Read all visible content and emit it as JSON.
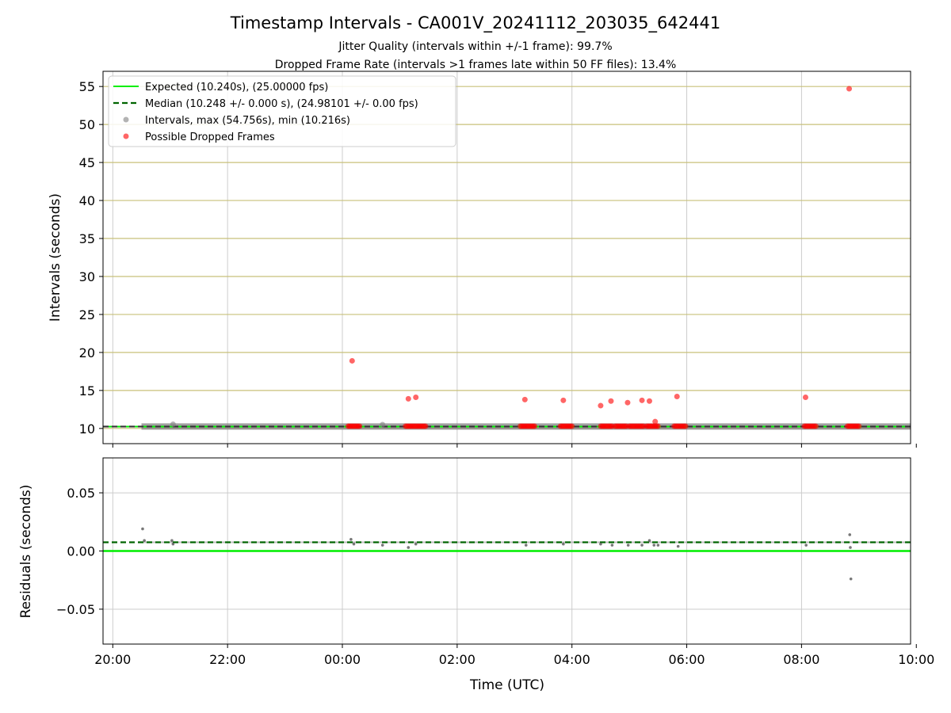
{
  "chart_data": {
    "type": "scatter",
    "title": "Timestamp Intervals - CA001V_20241112_203035_642441",
    "subtitle_lines": [
      "Jitter Quality (intervals within +/-1 frame): 99.7%",
      "Dropped Frame Rate (intervals >1 frames late within 50 FF files): 13.4%"
    ],
    "colors": {
      "expected": "#00ee00",
      "median": "#006400",
      "intervals": "#808080",
      "dropped": "#ff0000",
      "top_grid": "#c8c07a",
      "grid": "#cccccc"
    },
    "x_axis": {
      "label": "Time (UTC)",
      "range_hours": [
        19.83,
        33.9
      ],
      "ticks": [
        {
          "hour": 20,
          "label": "20:00"
        },
        {
          "hour": 22,
          "label": "22:00"
        },
        {
          "hour": 24,
          "label": "00:00"
        },
        {
          "hour": 26,
          "label": "02:00"
        },
        {
          "hour": 28,
          "label": "04:00"
        },
        {
          "hour": 30,
          "label": "06:00"
        },
        {
          "hour": 32,
          "label": "08:00"
        },
        {
          "hour": 34,
          "label": "10:00"
        }
      ]
    },
    "top_plot": {
      "ylabel": "Intervals (seconds)",
      "ylim": [
        8.0,
        57.0
      ],
      "yticks": [
        10,
        15,
        20,
        25,
        30,
        35,
        40,
        45,
        50,
        55
      ],
      "legend": {
        "placement": "top-left",
        "entries": [
          "Expected (10.240s), (25.00000 fps)",
          "Median (10.248 +/- 0.000 s), (24.98101 +/- 0.00 fps)",
          "Intervals, max (54.756s), min (10.216s)",
          "Possible Dropped Frames"
        ]
      },
      "expected_value": 10.24,
      "median_value": 10.248,
      "interval_band": {
        "start": 20.5,
        "end": 33.9,
        "value": 10.25
      },
      "interval_points": [
        [
          21.05,
          10.55
        ],
        [
          24.7,
          10.5
        ]
      ],
      "dropped_points": [
        [
          24.17,
          18.9
        ],
        [
          25.15,
          13.9
        ],
        [
          25.28,
          14.1
        ],
        [
          27.18,
          13.8
        ],
        [
          27.85,
          13.7
        ],
        [
          28.5,
          13.0
        ],
        [
          28.68,
          13.6
        ],
        [
          28.97,
          13.4
        ],
        [
          29.22,
          13.7
        ],
        [
          29.35,
          13.6
        ],
        [
          29.45,
          10.9
        ],
        [
          29.83,
          14.2
        ],
        [
          32.07,
          14.1
        ],
        [
          32.83,
          54.7
        ]
      ],
      "dropped_clusters": [
        [
          24.1,
          24.3
        ],
        [
          25.1,
          25.45
        ],
        [
          27.1,
          27.35
        ],
        [
          27.8,
          28.0
        ],
        [
          28.5,
          28.7
        ],
        [
          28.75,
          28.95
        ],
        [
          29.0,
          29.25
        ],
        [
          29.3,
          29.5
        ],
        [
          29.78,
          30.0
        ],
        [
          32.05,
          32.25
        ],
        [
          32.8,
          33.0
        ]
      ],
      "cluster_value": 10.3
    },
    "bottom_plot": {
      "ylabel": "Residuals (seconds)",
      "ylim": [
        -0.08,
        0.08
      ],
      "yticks": [
        {
          "value": 0.05,
          "label": "0.05"
        },
        {
          "value": 0.0,
          "label": "0.00"
        },
        {
          "value": -0.05,
          "label": "−0.05"
        }
      ],
      "expected_residual": 0.0,
      "median_residual": 0.0075,
      "residual_band": {
        "start": 20.5,
        "end": 33.9,
        "value": 0.0075
      },
      "residual_points": [
        [
          20.52,
          0.019
        ],
        [
          20.55,
          0.009
        ],
        [
          21.03,
          0.009
        ],
        [
          21.05,
          0.006
        ],
        [
          24.15,
          0.01
        ],
        [
          24.2,
          0.006
        ],
        [
          24.7,
          0.005
        ],
        [
          25.15,
          0.003
        ],
        [
          25.28,
          0.006
        ],
        [
          27.2,
          0.005
        ],
        [
          27.85,
          0.006
        ],
        [
          28.5,
          0.006
        ],
        [
          28.7,
          0.005
        ],
        [
          28.98,
          0.005
        ],
        [
          29.22,
          0.005
        ],
        [
          29.35,
          0.009
        ],
        [
          29.43,
          0.005
        ],
        [
          29.5,
          0.005
        ],
        [
          29.85,
          0.004
        ],
        [
          32.08,
          0.005
        ],
        [
          32.84,
          0.014
        ],
        [
          32.85,
          0.003
        ],
        [
          32.86,
          -0.024
        ]
      ]
    }
  }
}
